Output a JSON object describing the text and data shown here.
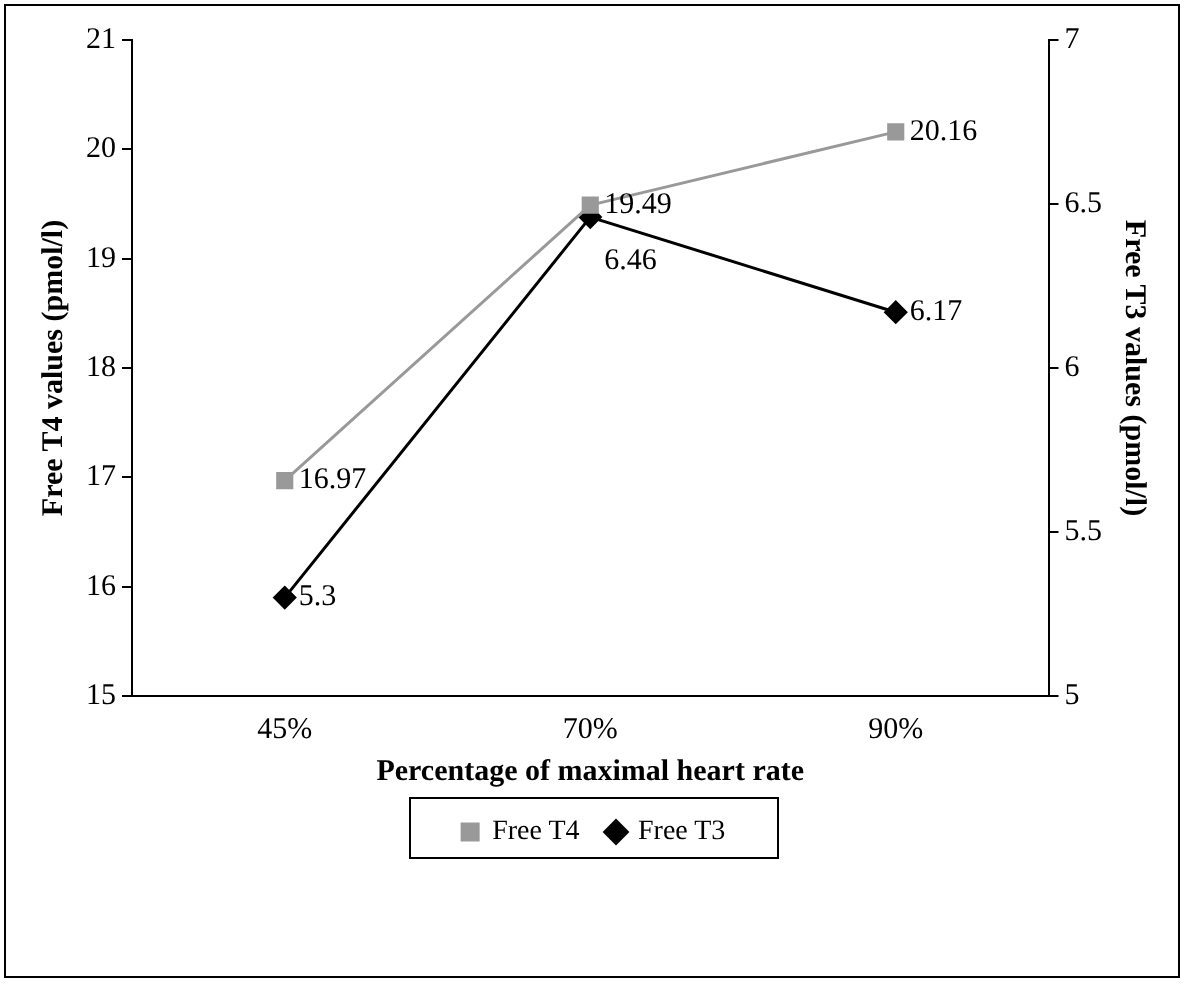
{
  "chart_data": {
    "type": "line",
    "xlabel": "Percentage of maximal heart rate",
    "ylabel": "Free T4 values (pmol/l)",
    "y2label": "Free T3 values (pmol/l)",
    "categories": [
      "45%",
      "70%",
      "90%"
    ],
    "series": [
      {
        "name": "Free T4",
        "color": "#999999",
        "values": [
          16.97,
          19.49,
          20.16
        ],
        "marker": "square"
      },
      {
        "name": "Free T3",
        "color": "#000000",
        "values": [
          5.3,
          6.46,
          6.17
        ],
        "axis": "y2",
        "marker": "diamond"
      }
    ],
    "ylim": [
      15,
      21
    ],
    "yticks": [
      15,
      16,
      17,
      18,
      19,
      20,
      21
    ],
    "y2lim": [
      5,
      7
    ],
    "y2ticks": [
      5,
      5.5,
      6,
      6.5,
      7
    ],
    "data_labels": true,
    "legend": "bottom",
    "grid": false
  }
}
